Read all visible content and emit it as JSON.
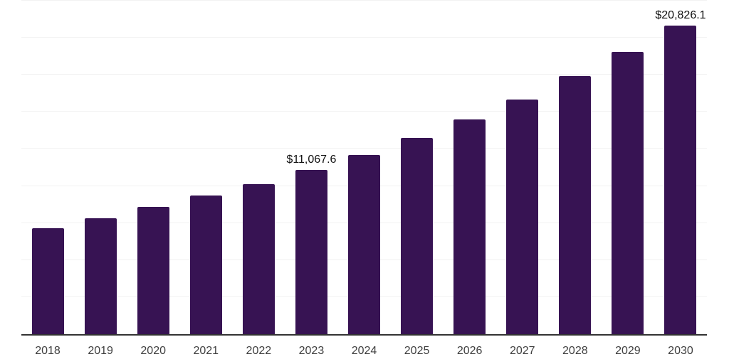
{
  "chart_data": {
    "type": "bar",
    "title": "",
    "xlabel": "",
    "ylabel": "",
    "categories": [
      "2018",
      "2019",
      "2020",
      "2021",
      "2022",
      "2023",
      "2024",
      "2025",
      "2026",
      "2027",
      "2028",
      "2029",
      "2030"
    ],
    "values": [
      7140,
      7840,
      8600,
      9360,
      10140,
      11067.6,
      12080,
      13250,
      14480,
      15840,
      17420,
      19050,
      20826.1
    ],
    "data_labels": {
      "2023": "$11,067.6",
      "2030": "$20,826.1"
    },
    "ylim": [
      0,
      22500
    ],
    "ytick_step": 2500,
    "grid": "horizontal-only",
    "legend": "none",
    "y_axis_tick_labels_visible": false,
    "colors": {
      "bar": "#371353",
      "gridline": "#f2f2f2",
      "axis_line": "#333333",
      "tick_label": "#3f3f3f",
      "data_label": "#111111",
      "background": "#ffffff"
    }
  }
}
